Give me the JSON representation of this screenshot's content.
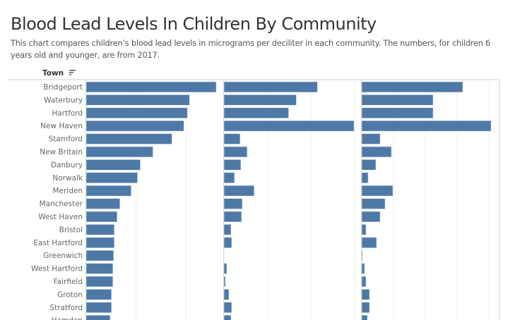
{
  "title": "Blood Lead Levels In Children By Community",
  "subtitle": "This chart compares children’s blood lead levels in micrograms per deciliter in each community. The numbers, for children 6 years old and younger, are from 2017.",
  "row_header": "Town",
  "row_header_icon": "sort-descending-icon",
  "chart_data": {
    "type": "bar",
    "orientation": "horizontal",
    "bar_color": "#4e79a7",
    "grid": true,
    "note": "",
    "categories": [
      "Bridgeport",
      "Waterbury",
      "Hartford",
      "New Haven",
      "Stamford",
      "New Britain",
      "Danbury",
      "Norwalk",
      "Meriden",
      "Manchester",
      "West Haven",
      "Bristol",
      "East Hartford",
      "Greenwich",
      "West Hartford",
      "Fairfield",
      "Groton",
      "Stratford",
      "Hamden"
    ],
    "panels": [
      {
        "xlim": [
          0,
          192
        ],
        "grid_step": 71,
        "values": [
          185,
          147,
          144,
          139,
          122,
          95,
          77,
          73,
          64,
          48,
          44,
          40,
          40,
          39,
          38,
          38,
          36,
          36,
          34
        ]
      },
      {
        "xlim": [
          0,
          192
        ],
        "grid_step": 62,
        "values": [
          133,
          103,
          92,
          185,
          23,
          33,
          24,
          15,
          43,
          26,
          25,
          10,
          11,
          0,
          4,
          2,
          7,
          11,
          10
        ]
      },
      {
        "xlim": [
          0,
          194
        ],
        "grid_step": 45,
        "values": [
          143,
          101,
          101,
          183,
          26,
          42,
          20,
          9,
          44,
          33,
          26,
          6,
          21,
          1,
          4,
          6,
          11,
          11,
          8
        ]
      }
    ]
  }
}
